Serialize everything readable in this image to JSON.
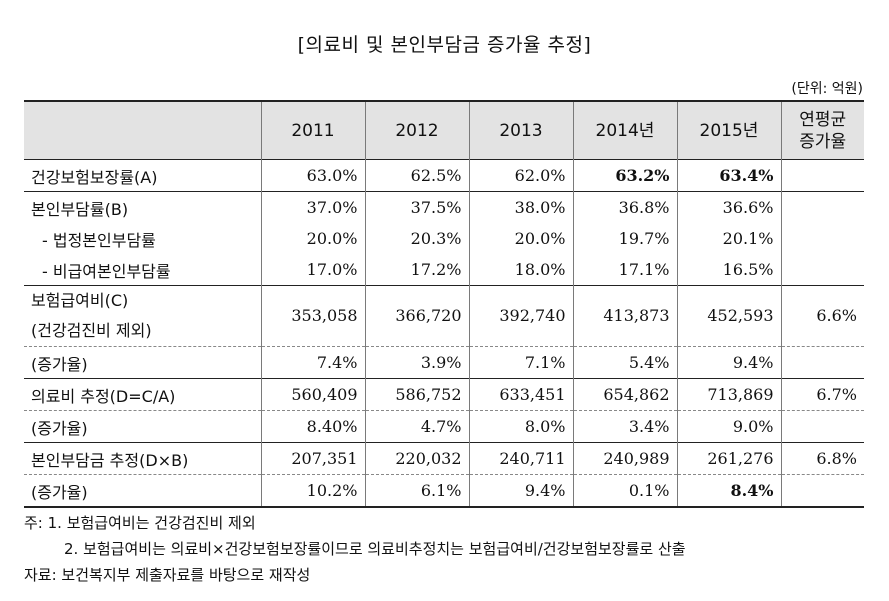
{
  "title": "[의료비 및 본인부담금 증가율 추정]",
  "unit": "(단위: 억원)",
  "headers": [
    "",
    "2011",
    "2012",
    "2013",
    "2014년",
    "2015년",
    "연평균\n증가율"
  ],
  "rows": {
    "r1": {
      "label": "건강보험보장률(A)",
      "v": [
        "63.0%",
        "62.5%",
        "62.0%",
        "63.2%",
        "63.4%",
        ""
      ]
    },
    "r2": {
      "label": "본인부담률(B)",
      "v": [
        "37.0%",
        "37.5%",
        "38.0%",
        "36.8%",
        "36.6%",
        ""
      ]
    },
    "r3": {
      "label": "- 법정본인부담률",
      "v": [
        "20.0%",
        "20.3%",
        "20.0%",
        "19.7%",
        "20.1%",
        ""
      ]
    },
    "r4": {
      "label": "- 비급여본인부담률",
      "v": [
        "17.0%",
        "17.2%",
        "18.0%",
        "17.1%",
        "16.5%",
        ""
      ]
    },
    "r5": {
      "label1": "보험급여비(C)",
      "label2": "(건강검진비 제외)",
      "v": [
        "353,058",
        "366,720",
        "392,740",
        "413,873",
        "452,593",
        "6.6%"
      ]
    },
    "r6": {
      "label": "(증가율)",
      "v": [
        "7.4%",
        "3.9%",
        "7.1%",
        "5.4%",
        "9.4%",
        ""
      ]
    },
    "r7": {
      "label": "의료비 추정(D=C/A)",
      "v": [
        "560,409",
        "586,752",
        "633,451",
        "654,862",
        "713,869",
        "6.7%"
      ]
    },
    "r8": {
      "label": "(증가율)",
      "v": [
        "8.40%",
        "4.7%",
        "8.0%",
        "3.4%",
        "9.0%",
        ""
      ]
    },
    "r9": {
      "label": "본인부담금 추정(D×B)",
      "v": [
        "207,351",
        "220,032",
        "240,711",
        "240,989",
        "261,276",
        "6.8%"
      ]
    },
    "r10": {
      "label": "(증가율)",
      "v": [
        "10.2%",
        "6.1%",
        "9.4%",
        "0.1%",
        "8.4%",
        ""
      ]
    }
  },
  "notes": [
    "주: 1. 보험급여비는 건강검진비 제외",
    "2. 보험급여비는 의료비×건강보험보장률이므로 의료비추정치는 보험급여비/건강보험보장률로 산출",
    "자료: 보건복지부 제출자료를 바탕으로 재작성"
  ]
}
